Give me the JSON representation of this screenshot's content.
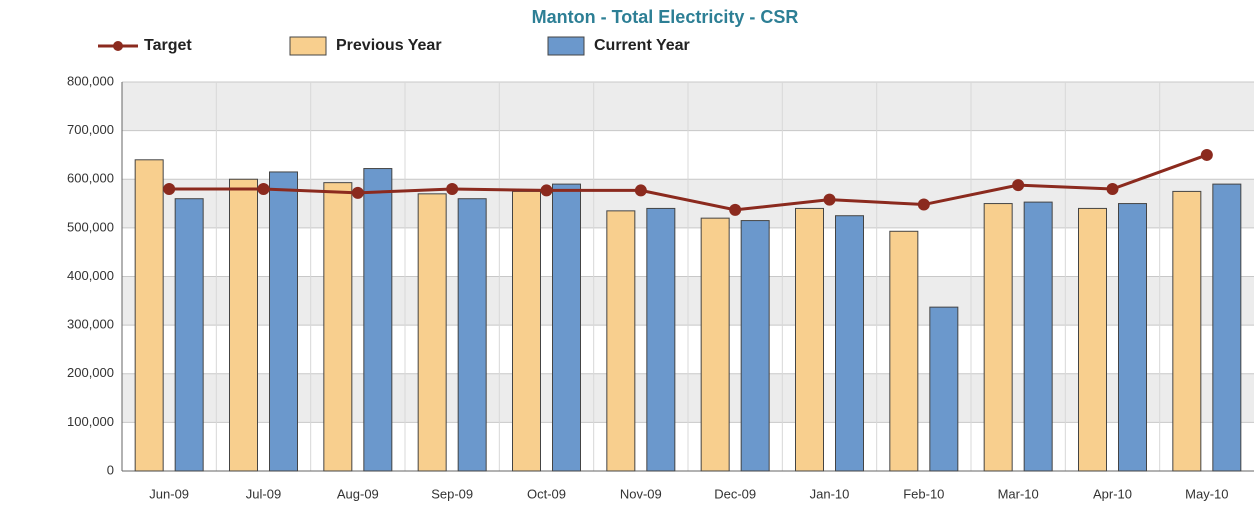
{
  "chart_data": {
    "type": "bar",
    "title": "Manton - Total Electricity - CSR",
    "categories": [
      "Jun-09",
      "Jul-09",
      "Aug-09",
      "Sep-09",
      "Oct-09",
      "Nov-09",
      "Dec-09",
      "Jan-10",
      "Feb-10",
      "Mar-10",
      "Apr-10",
      "May-10"
    ],
    "series": [
      {
        "name": "Target",
        "kind": "line",
        "color": "#8b2a1e",
        "values": [
          580000,
          580000,
          572000,
          580000,
          577000,
          577000,
          537000,
          558000,
          548000,
          588000,
          580000,
          650000
        ]
      },
      {
        "name": "Previous Year",
        "kind": "bar",
        "color": "#f8cf8e",
        "values": [
          640000,
          600000,
          593000,
          570000,
          575000,
          535000,
          520000,
          540000,
          493000,
          550000,
          540000,
          575000
        ]
      },
      {
        "name": "Current Year",
        "kind": "bar",
        "color": "#6b98cc",
        "values": [
          560000,
          615000,
          622000,
          560000,
          590000,
          540000,
          515000,
          525000,
          337000,
          553000,
          550000,
          590000
        ]
      }
    ],
    "ylim": [
      0,
      800000
    ],
    "yticks": [
      0,
      {
        "value": 100000,
        "label": "100,000"
      },
      {
        "value": 200000,
        "label": "200,000"
      },
      {
        "value": 300000,
        "label": "300,000"
      },
      {
        "value": 400000,
        "label": "400,000"
      },
      {
        "value": 500000,
        "label": "500,000"
      },
      {
        "value": 600000,
        "label": "600,000"
      },
      {
        "value": 700000,
        "label": "700,000"
      },
      {
        "value": 800000,
        "label": "800,000"
      }
    ],
    "grid": true
  }
}
